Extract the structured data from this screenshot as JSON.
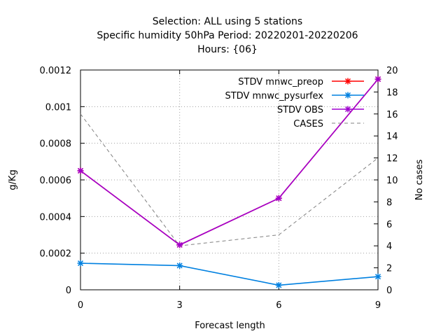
{
  "title_lines": [
    "Selection: ALL using     5 stations",
    "Specific humidity 50hPa   Period: 20220201-20220206",
    "Hours: {06}"
  ],
  "chart_data": {
    "type": "line",
    "xlabel": "Forecast length",
    "ylabel": "g/Kg",
    "y2label": "No cases",
    "x": [
      0,
      3,
      6,
      9
    ],
    "x_ticks": [
      "0",
      "3",
      "6",
      "9"
    ],
    "xlim": [
      0,
      9
    ],
    "ylim": [
      0,
      0.0012
    ],
    "y_ticks": [
      "0",
      "0.0002",
      "0.0004",
      "0.0006",
      "0.0008",
      "0.001",
      "0.0012"
    ],
    "y2lim": [
      0,
      20
    ],
    "y2_ticks": [
      "0",
      "2",
      "4",
      "6",
      "8",
      "10",
      "12",
      "14",
      "16",
      "18",
      "20"
    ],
    "grid": true,
    "legend_position": "top-right",
    "series": [
      {
        "name": "STDV mnwc_preop",
        "axis": "left",
        "color": "#ff0000",
        "values": [
          0.00065,
          0.000245,
          0.0005,
          0.00115
        ]
      },
      {
        "name": "STDV mnwc_pysurfex",
        "axis": "left",
        "color": "#0080e0",
        "values": [
          0.000145,
          0.000132,
          2.5e-05,
          7.2e-05
        ]
      },
      {
        "name": "STDV OBS",
        "axis": "left",
        "color": "#a000d0",
        "values": [
          0.00065,
          0.000245,
          0.0005,
          0.00115
        ]
      },
      {
        "name": "CASES",
        "axis": "right",
        "color": "#808080",
        "dashed": true,
        "values": [
          16,
          4,
          5,
          12
        ]
      }
    ]
  }
}
